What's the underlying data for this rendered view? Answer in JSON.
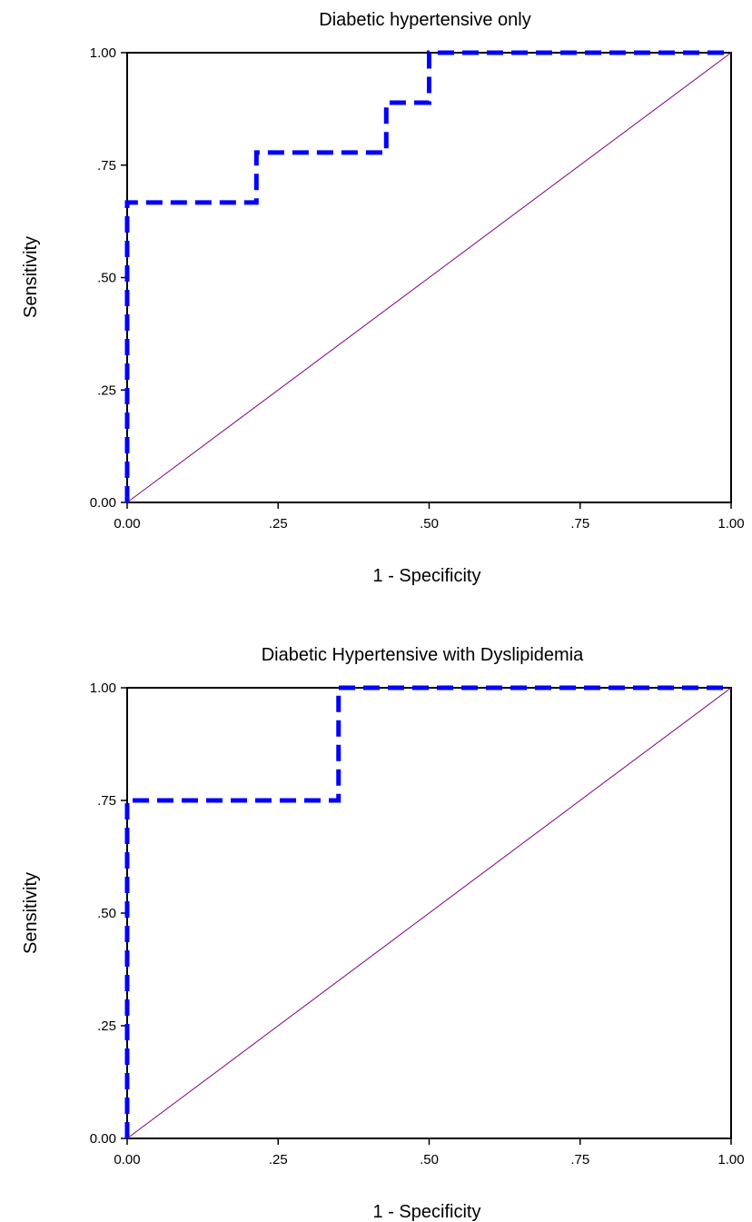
{
  "colors": {
    "roc_line": "#0000ff",
    "reference_line": "#800080",
    "frame": "#000000"
  },
  "chart_data": [
    {
      "type": "line",
      "title": "Diabetic hypertensive only",
      "xlabel": "1 - Specificity",
      "ylabel": "Sensitivity",
      "xlim": [
        0,
        1
      ],
      "ylim": [
        0,
        1
      ],
      "x_ticks": [
        0,
        0.25,
        0.5,
        0.75,
        1
      ],
      "x_tick_labels": [
        "0.00",
        ".25",
        ".50",
        ".75",
        "1.00"
      ],
      "y_ticks": [
        0,
        0.25,
        0.5,
        0.75,
        1
      ],
      "y_tick_labels": [
        "0.00",
        ".25",
        ".50",
        ".75",
        "1.00"
      ],
      "grid": false,
      "series": [
        {
          "style": "dashed",
          "x": [
            0,
            0,
            0.214,
            0.214,
            0.429,
            0.429,
            0.5,
            0.5,
            1
          ],
          "y": [
            0,
            0.667,
            0.667,
            0.778,
            0.778,
            0.889,
            0.889,
            1,
            1
          ]
        },
        {
          "style": "solid",
          "x": [
            0,
            1
          ],
          "y": [
            0,
            1
          ]
        }
      ]
    },
    {
      "type": "line",
      "title": "Diabetic Hypertensive with Dyslipidemia",
      "xlabel": "1 - Specificity",
      "ylabel": "Sensitivity",
      "xlim": [
        0,
        1
      ],
      "ylim": [
        0,
        1
      ],
      "x_ticks": [
        0,
        0.25,
        0.5,
        0.75,
        1
      ],
      "x_tick_labels": [
        "0.00",
        ".25",
        ".50",
        ".75",
        "1.00"
      ],
      "y_ticks": [
        0,
        0.25,
        0.5,
        0.75,
        1
      ],
      "y_tick_labels": [
        "0.00",
        ".25",
        ".50",
        ".75",
        "1.00"
      ],
      "grid": false,
      "series": [
        {
          "style": "dashed",
          "x": [
            0,
            0,
            0.35,
            0.35,
            1
          ],
          "y": [
            0,
            0.75,
            0.75,
            1,
            1
          ]
        },
        {
          "style": "solid",
          "x": [
            0,
            1
          ],
          "y": [
            0,
            1
          ]
        }
      ]
    }
  ]
}
